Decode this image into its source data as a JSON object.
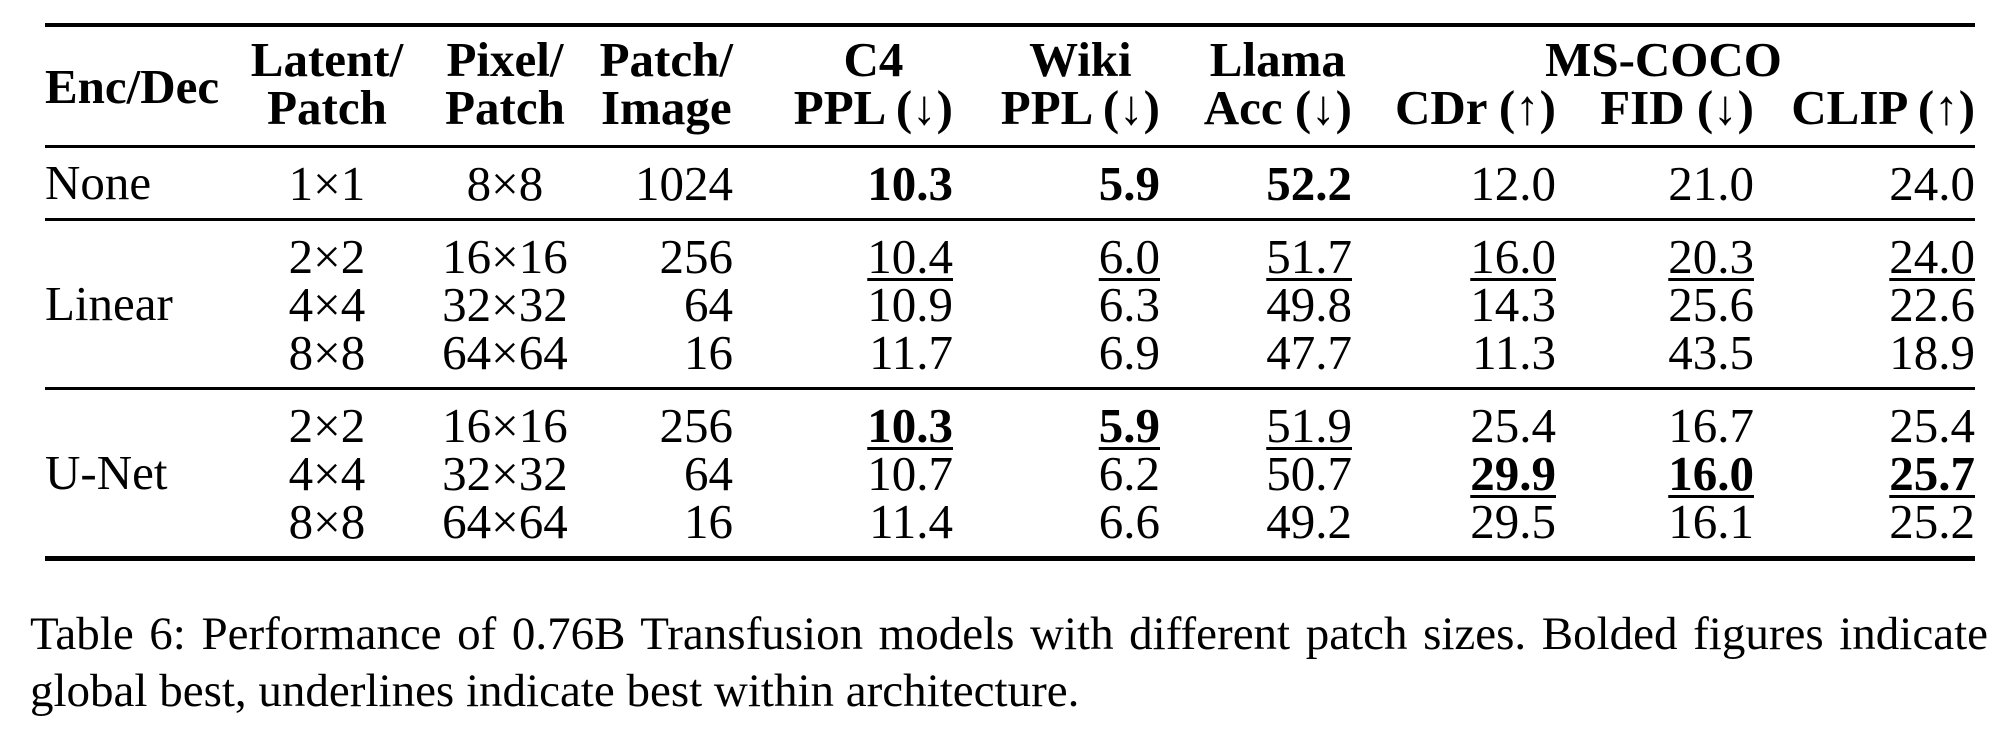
{
  "table": {
    "columns": [
      {
        "id": "enc-dec",
        "header": "Enc/Dec"
      },
      {
        "id": "latent-patch",
        "line1": "Latent/",
        "line2": "Patch"
      },
      {
        "id": "pixel-patch",
        "line1": "Pixel/",
        "line2": "Patch"
      },
      {
        "id": "patch-image",
        "line1": "Patch/",
        "line2": "Image"
      },
      {
        "id": "c4-ppl",
        "line1": "C4",
        "line2": "PPL (↓)"
      },
      {
        "id": "wiki-ppl",
        "line1": "Wiki",
        "line2": "PPL (↓)"
      },
      {
        "id": "llama-acc",
        "line1": "Llama",
        "line2": "Acc (↓)"
      },
      {
        "id": "cdr",
        "label": "CDr (↑)"
      },
      {
        "id": "fid",
        "label": "FID (↓)"
      },
      {
        "id": "clip",
        "label": "CLIP (↑)"
      }
    ],
    "group_header": "MS-COCO",
    "groups": [
      {
        "label": "None",
        "rows": [
          [
            {
              "t": "1×1"
            },
            {
              "t": "8×8"
            },
            {
              "t": "1024"
            },
            {
              "t": "10.3",
              "b": true
            },
            {
              "t": "5.9",
              "b": true
            },
            {
              "t": "52.2",
              "b": true
            },
            {
              "t": "12.0"
            },
            {
              "t": "21.0"
            },
            {
              "t": "24.0"
            }
          ]
        ]
      },
      {
        "label": "Linear",
        "rows": [
          [
            {
              "t": "2×2"
            },
            {
              "t": "16×16"
            },
            {
              "t": "256"
            },
            {
              "t": "10.4",
              "u": true
            },
            {
              "t": "6.0",
              "u": true
            },
            {
              "t": "51.7",
              "u": true
            },
            {
              "t": "16.0",
              "u": true
            },
            {
              "t": "20.3",
              "u": true
            },
            {
              "t": "24.0",
              "u": true
            }
          ],
          [
            {
              "t": "4×4"
            },
            {
              "t": "32×32"
            },
            {
              "t": "64"
            },
            {
              "t": "10.9"
            },
            {
              "t": "6.3"
            },
            {
              "t": "49.8"
            },
            {
              "t": "14.3"
            },
            {
              "t": "25.6"
            },
            {
              "t": "22.6"
            }
          ],
          [
            {
              "t": "8×8"
            },
            {
              "t": "64×64"
            },
            {
              "t": "16"
            },
            {
              "t": "11.7"
            },
            {
              "t": "6.9"
            },
            {
              "t": "47.7"
            },
            {
              "t": "11.3"
            },
            {
              "t": "43.5"
            },
            {
              "t": "18.9"
            }
          ]
        ]
      },
      {
        "label": "U-Net",
        "rows": [
          [
            {
              "t": "2×2"
            },
            {
              "t": "16×16"
            },
            {
              "t": "256"
            },
            {
              "t": "10.3",
              "b": true,
              "u": true
            },
            {
              "t": "5.9",
              "b": true,
              "u": true
            },
            {
              "t": "51.9",
              "u": true
            },
            {
              "t": "25.4"
            },
            {
              "t": "16.7"
            },
            {
              "t": "25.4"
            }
          ],
          [
            {
              "t": "4×4"
            },
            {
              "t": "32×32"
            },
            {
              "t": "64"
            },
            {
              "t": "10.7"
            },
            {
              "t": "6.2"
            },
            {
              "t": "50.7"
            },
            {
              "t": "29.9",
              "b": true,
              "u": true
            },
            {
              "t": "16.0",
              "b": true,
              "u": true
            },
            {
              "t": "25.7",
              "b": true,
              "u": true
            }
          ],
          [
            {
              "t": "8×8"
            },
            {
              "t": "64×64"
            },
            {
              "t": "16"
            },
            {
              "t": "11.4"
            },
            {
              "t": "6.6"
            },
            {
              "t": "49.2"
            },
            {
              "t": "29.5"
            },
            {
              "t": "16.1"
            },
            {
              "t": "25.2"
            }
          ]
        ]
      }
    ]
  },
  "caption": {
    "line1": "Table 6: Performance of 0.76B Transfusion models with different patch sizes. Bolded figures indicate",
    "line2": "global best, underlines indicate best within architecture.",
    "full_text": "Table 6: Performance of 0.76B Transfusion models with different patch sizes. Bolded figures indicate global best, underlines indicate best within architecture."
  }
}
